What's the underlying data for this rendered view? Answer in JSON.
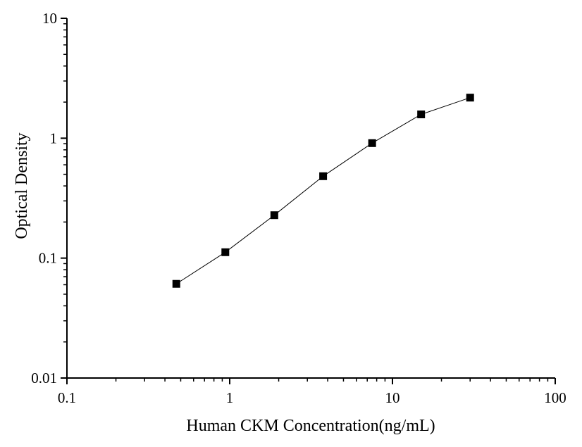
{
  "chart_data": {
    "type": "scatter",
    "xlabel": "Human CKM Concentration(ng/mL)",
    "ylabel": "Optical Density",
    "xscale": "log",
    "yscale": "log",
    "xlim": [
      0.1,
      100
    ],
    "ylim": [
      0.01,
      10
    ],
    "grid": false,
    "x_ticks": [
      {
        "value": 0.1,
        "label": "0.1"
      },
      {
        "value": 1,
        "label": "1"
      },
      {
        "value": 10,
        "label": "10"
      },
      {
        "value": 100,
        "label": "100"
      }
    ],
    "y_ticks": [
      {
        "value": 0.01,
        "label": "0.01"
      },
      {
        "value": 0.1,
        "label": "0.1"
      },
      {
        "value": 1,
        "label": "1"
      },
      {
        "value": 10,
        "label": "10"
      }
    ],
    "series": [
      {
        "x": [
          0.47,
          0.94,
          1.88,
          3.75,
          7.5,
          15,
          30
        ],
        "y": [
          0.061,
          0.112,
          0.228,
          0.482,
          0.91,
          1.58,
          2.18
        ],
        "marker": "square",
        "connected": true,
        "color": "#000000"
      }
    ]
  }
}
